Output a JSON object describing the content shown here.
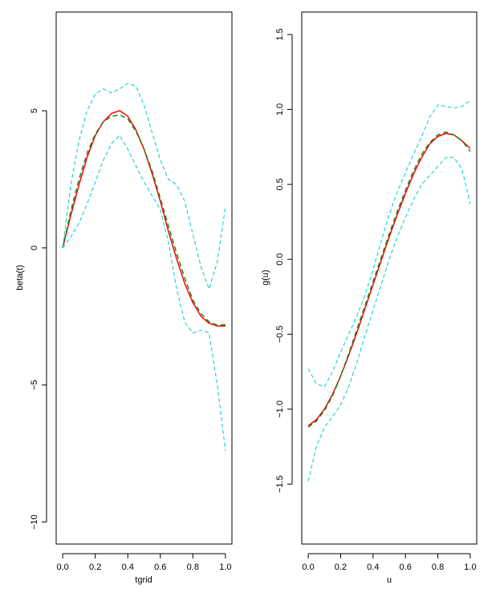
{
  "chart_data": [
    {
      "type": "line",
      "xlabel": "tgrid",
      "ylabel": "beta(t)",
      "xlim": [
        -0.04,
        1.04
      ],
      "ylim": [
        -10.8,
        8.6
      ],
      "x_ticks": [
        0.0,
        0.2,
        0.4,
        0.6,
        0.8,
        1.0
      ],
      "x_tick_labels": [
        "0.0",
        "0.2",
        "0.4",
        "0.6",
        "0.8",
        "1.0"
      ],
      "y_ticks": [
        -10,
        -5,
        0,
        5
      ],
      "y_tick_labels": [
        "−10",
        "−5",
        "0",
        "5"
      ],
      "grid": false,
      "series": [
        {
          "role": "true",
          "color": "#ff0000",
          "dash": "none",
          "width": 1.5,
          "x": [
            0,
            0.05,
            0.1,
            0.15,
            0.2,
            0.25,
            0.3,
            0.35,
            0.4,
            0.45,
            0.5,
            0.55,
            0.6,
            0.65,
            0.7,
            0.75,
            0.8,
            0.85,
            0.9,
            0.95,
            1.0
          ],
          "y": [
            0,
            1.2,
            2.3,
            3.3,
            4.1,
            4.6,
            4.9,
            5.0,
            4.8,
            4.3,
            3.6,
            2.7,
            1.7,
            0.6,
            -0.4,
            -1.3,
            -2.0,
            -2.5,
            -2.75,
            -2.85,
            -2.85
          ]
        },
        {
          "role": "estimate",
          "color": "#1a8a1a",
          "dash": "6,4",
          "width": 1.5,
          "x": [
            0,
            0.05,
            0.1,
            0.15,
            0.2,
            0.25,
            0.3,
            0.35,
            0.4,
            0.45,
            0.5,
            0.55,
            0.6,
            0.65,
            0.7,
            0.75,
            0.8,
            0.85,
            0.9,
            0.95,
            1.0
          ],
          "y": [
            0,
            1.35,
            2.5,
            3.45,
            4.15,
            4.6,
            4.8,
            4.85,
            4.7,
            4.25,
            3.6,
            2.8,
            1.8,
            0.8,
            -0.2,
            -1.1,
            -1.9,
            -2.4,
            -2.7,
            -2.82,
            -2.8
          ]
        },
        {
          "role": "upper-band",
          "color": "#00cccc",
          "dash": "5,3",
          "width": 1,
          "x": [
            0,
            0.05,
            0.1,
            0.15,
            0.2,
            0.25,
            0.3,
            0.35,
            0.4,
            0.45,
            0.5,
            0.55,
            0.6,
            0.65,
            0.7,
            0.75,
            0.8,
            0.85,
            0.9,
            0.95,
            1.0
          ],
          "y": [
            0,
            2.3,
            3.9,
            5.0,
            5.6,
            5.8,
            5.65,
            5.8,
            6.0,
            5.9,
            5.2,
            4.2,
            3.2,
            2.5,
            2.3,
            1.7,
            0.5,
            -0.7,
            -1.5,
            -0.5,
            1.5
          ]
        },
        {
          "role": "lower-band",
          "color": "#00cccc",
          "dash": "5,3",
          "width": 1,
          "x": [
            0,
            0.05,
            0.1,
            0.15,
            0.2,
            0.25,
            0.3,
            0.35,
            0.4,
            0.45,
            0.5,
            0.55,
            0.6,
            0.65,
            0.7,
            0.75,
            0.8,
            0.85,
            0.9,
            0.95,
            1.0
          ],
          "y": [
            0,
            0.4,
            0.9,
            1.6,
            2.4,
            3.2,
            3.8,
            4.1,
            3.6,
            3.0,
            2.4,
            1.9,
            1.4,
            0.2,
            -1.5,
            -2.7,
            -3.1,
            -3.0,
            -3.1,
            -5.0,
            -7.4
          ]
        }
      ]
    },
    {
      "type": "line",
      "xlabel": "u",
      "ylabel": "g(u)",
      "xlim": [
        -0.04,
        1.04
      ],
      "ylim": [
        -1.9,
        1.65
      ],
      "x_ticks": [
        0.0,
        0.2,
        0.4,
        0.6,
        0.8,
        1.0
      ],
      "x_tick_labels": [
        "0.0",
        "0.2",
        "0.4",
        "0.6",
        "0.8",
        "1.0"
      ],
      "y_ticks": [
        -1.5,
        -1.0,
        -0.5,
        0.0,
        0.5,
        1.0,
        1.5
      ],
      "y_tick_labels": [
        "−1.5",
        "−1.0",
        "−0.5",
        "0.0",
        "0.5",
        "1.0",
        "1.5"
      ],
      "grid": false,
      "series": [
        {
          "role": "true",
          "color": "#ff0000",
          "dash": "none",
          "width": 1.5,
          "x": [
            0,
            0.05,
            0.1,
            0.15,
            0.2,
            0.25,
            0.3,
            0.35,
            0.4,
            0.45,
            0.5,
            0.55,
            0.6,
            0.65,
            0.7,
            0.75,
            0.8,
            0.85,
            0.9,
            0.95,
            1.0
          ],
          "y": [
            -1.11,
            -1.07,
            -1.0,
            -0.9,
            -0.78,
            -0.64,
            -0.49,
            -0.33,
            -0.17,
            -0.01,
            0.15,
            0.3,
            0.44,
            0.57,
            0.68,
            0.77,
            0.82,
            0.84,
            0.83,
            0.79,
            0.74
          ]
        },
        {
          "role": "estimate",
          "color": "#1a8a1a",
          "dash": "6,4",
          "width": 1.5,
          "x": [
            0,
            0.05,
            0.1,
            0.15,
            0.2,
            0.25,
            0.3,
            0.35,
            0.4,
            0.45,
            0.5,
            0.55,
            0.6,
            0.65,
            0.7,
            0.75,
            0.8,
            0.85,
            0.9,
            0.95,
            1.0
          ],
          "y": [
            -1.12,
            -1.08,
            -1.01,
            -0.91,
            -0.78,
            -0.63,
            -0.47,
            -0.31,
            -0.15,
            0.01,
            0.17,
            0.32,
            0.46,
            0.59,
            0.7,
            0.78,
            0.83,
            0.85,
            0.83,
            0.79,
            0.72
          ]
        },
        {
          "role": "upper-band",
          "color": "#00cccc",
          "dash": "5,3",
          "width": 1,
          "x": [
            0,
            0.05,
            0.1,
            0.15,
            0.2,
            0.25,
            0.3,
            0.35,
            0.4,
            0.45,
            0.5,
            0.55,
            0.6,
            0.65,
            0.7,
            0.75,
            0.8,
            0.85,
            0.9,
            0.95,
            1.0
          ],
          "y": [
            -0.73,
            -0.83,
            -0.85,
            -0.75,
            -0.62,
            -0.5,
            -0.38,
            -0.24,
            -0.07,
            0.12,
            0.3,
            0.45,
            0.58,
            0.7,
            0.82,
            0.95,
            1.03,
            1.02,
            1.01,
            1.02,
            1.06
          ]
        },
        {
          "role": "lower-band",
          "color": "#00cccc",
          "dash": "5,3",
          "width": 1,
          "x": [
            0,
            0.05,
            0.1,
            0.15,
            0.2,
            0.25,
            0.3,
            0.35,
            0.4,
            0.45,
            0.5,
            0.55,
            0.6,
            0.65,
            0.7,
            0.75,
            0.8,
            0.85,
            0.9,
            0.95,
            1.0
          ],
          "y": [
            -1.48,
            -1.25,
            -1.12,
            -1.05,
            -0.97,
            -0.85,
            -0.69,
            -0.51,
            -0.34,
            -0.17,
            0.0,
            0.15,
            0.28,
            0.4,
            0.5,
            0.56,
            0.62,
            0.68,
            0.68,
            0.6,
            0.37
          ]
        }
      ]
    }
  ]
}
